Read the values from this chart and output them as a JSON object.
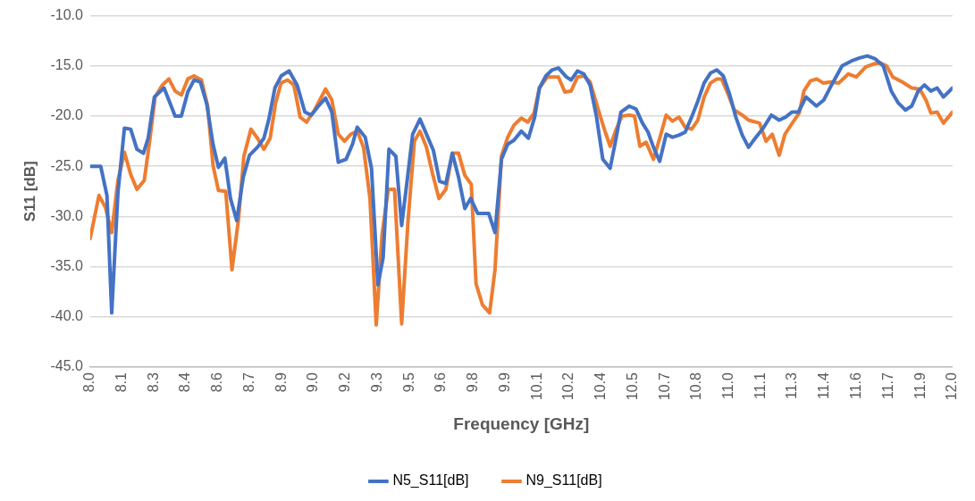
{
  "chart_data": {
    "type": "line",
    "xlabel": "Frequency [GHz]",
    "ylabel": "S11 [dB]",
    "xlim": [
      8,
      12
    ],
    "ylim": [
      -45,
      -10
    ],
    "xticks": [
      {
        "value": 8,
        "label": "8.0"
      },
      {
        "value": 8.148,
        "label": "8.1"
      },
      {
        "value": 8.296,
        "label": "8.3"
      },
      {
        "value": 8.444,
        "label": "8.4"
      },
      {
        "value": 8.593,
        "label": "8.6"
      },
      {
        "value": 8.741,
        "label": "8.7"
      },
      {
        "value": 8.889,
        "label": "8.9"
      },
      {
        "value": 9.037,
        "label": "9.0"
      },
      {
        "value": 9.185,
        "label": "9.2"
      },
      {
        "value": 9.333,
        "label": "9.3"
      },
      {
        "value": 9.481,
        "label": "9.5"
      },
      {
        "value": 9.63,
        "label": "9.6"
      },
      {
        "value": 9.778,
        "label": "9.8"
      },
      {
        "value": 9.926,
        "label": "9.9"
      },
      {
        "value": 10.074,
        "label": "10.1"
      },
      {
        "value": 10.222,
        "label": "10.2"
      },
      {
        "value": 10.37,
        "label": "10.4"
      },
      {
        "value": 10.519,
        "label": "10.5"
      },
      {
        "value": 10.667,
        "label": "10.7"
      },
      {
        "value": 10.815,
        "label": "10.8"
      },
      {
        "value": 10.963,
        "label": "11.0"
      },
      {
        "value": 11.111,
        "label": "11.1"
      },
      {
        "value": 11.259,
        "label": "11.3"
      },
      {
        "value": 11.407,
        "label": "11.4"
      },
      {
        "value": 11.556,
        "label": "11.6"
      },
      {
        "value": 11.704,
        "label": "11.7"
      },
      {
        "value": 11.852,
        "label": "11.9"
      },
      {
        "value": 12,
        "label": "12.0"
      }
    ],
    "yticks": [
      {
        "value": -45,
        "label": "-45.0"
      },
      {
        "value": -40,
        "label": "-40.0"
      },
      {
        "value": -35,
        "label": "-35.0"
      },
      {
        "value": -30,
        "label": "-30.0"
      },
      {
        "value": -25,
        "label": "-25.0"
      },
      {
        "value": -20,
        "label": "-20.0"
      },
      {
        "value": -15,
        "label": "-15.0"
      },
      {
        "value": -10,
        "label": "-10.0"
      }
    ],
    "grid": "y",
    "legend": "bottom",
    "series": [
      {
        "name": "N5_S11[dB]",
        "color": "#4472c4",
        "x": [
          8.0,
          8.049,
          8.078,
          8.1,
          8.129,
          8.159,
          8.188,
          8.217,
          8.247,
          8.269,
          8.298,
          8.343,
          8.394,
          8.423,
          8.453,
          8.482,
          8.511,
          8.541,
          8.57,
          8.595,
          8.625,
          8.651,
          8.68,
          8.71,
          8.739,
          8.776,
          8.806,
          8.828,
          8.857,
          8.886,
          8.923,
          8.96,
          8.996,
          9.026,
          9.055,
          9.092,
          9.121,
          9.151,
          9.187,
          9.217,
          9.239,
          9.276,
          9.305,
          9.335,
          9.359,
          9.386,
          9.418,
          9.445,
          9.474,
          9.496,
          9.53,
          9.562,
          9.592,
          9.621,
          9.65,
          9.68,
          9.709,
          9.738,
          9.765,
          9.798,
          9.849,
          9.878,
          9.908,
          9.937,
          9.966,
          10.0,
          10.033,
          10.062,
          10.084,
          10.114,
          10.143,
          10.172,
          10.209,
          10.231,
          10.261,
          10.29,
          10.319,
          10.349,
          10.378,
          10.412,
          10.437,
          10.462,
          10.5,
          10.532,
          10.562,
          10.588,
          10.613,
          10.642,
          10.672,
          10.701,
          10.731,
          10.76,
          10.79,
          10.819,
          10.848,
          10.878,
          10.907,
          10.937,
          10.966,
          10.995,
          11.025,
          11.054,
          11.085,
          11.122,
          11.16,
          11.196,
          11.226,
          11.255,
          11.285,
          11.321,
          11.369,
          11.403,
          11.439,
          11.488,
          11.532,
          11.569,
          11.605,
          11.642,
          11.679,
          11.716,
          11.749,
          11.782,
          11.811,
          11.841,
          11.87,
          11.9,
          11.929,
          11.958,
          12.0
        ],
        "values": [
          -25.0,
          -25.0,
          -27.9,
          -39.6,
          -27.6,
          -21.2,
          -21.3,
          -23.3,
          -23.7,
          -22.2,
          -18.1,
          -17.2,
          -20.0,
          -20.0,
          -17.6,
          -16.4,
          -16.6,
          -18.8,
          -22.8,
          -25.1,
          -24.2,
          -28.2,
          -30.4,
          -26.1,
          -23.9,
          -23.1,
          -22.2,
          -20.4,
          -17.2,
          -16.0,
          -15.5,
          -16.9,
          -19.6,
          -19.9,
          -19.1,
          -18.2,
          -19.6,
          -24.6,
          -24.3,
          -22.8,
          -21.1,
          -22.1,
          -25.2,
          -36.8,
          -34.1,
          -23.3,
          -24.0,
          -30.9,
          -25.8,
          -21.8,
          -20.3,
          -21.9,
          -23.4,
          -26.5,
          -26.7,
          -23.7,
          -26.1,
          -29.2,
          -28.2,
          -29.7,
          -29.7,
          -31.6,
          -24.3,
          -22.8,
          -22.4,
          -21.5,
          -22.2,
          -20.1,
          -17.2,
          -16.0,
          -15.4,
          -15.2,
          -16.1,
          -16.4,
          -15.5,
          -15.8,
          -16.9,
          -20.1,
          -24.3,
          -25.2,
          -22.5,
          -19.6,
          -19.0,
          -19.3,
          -20.7,
          -21.6,
          -23.1,
          -24.5,
          -21.8,
          -22.1,
          -21.9,
          -21.6,
          -20.1,
          -18.5,
          -16.7,
          -15.7,
          -15.4,
          -16.0,
          -17.8,
          -20.1,
          -21.9,
          -23.1,
          -22.2,
          -21.2,
          -19.9,
          -20.4,
          -20.1,
          -19.6,
          -19.6,
          -18.1,
          -19.0,
          -18.4,
          -16.9,
          -15.0,
          -14.5,
          -14.2,
          -14.0,
          -14.3,
          -15.0,
          -17.5,
          -18.7,
          -19.4,
          -19.0,
          -17.5,
          -16.9,
          -17.5,
          -17.2,
          -18.1,
          -17.2
        ]
      },
      {
        "name": "N9_S11[dB]",
        "color": "#ed7d31",
        "x": [
          8.0,
          8.041,
          8.071,
          8.1,
          8.129,
          8.159,
          8.188,
          8.217,
          8.251,
          8.276,
          8.301,
          8.335,
          8.365,
          8.394,
          8.423,
          8.453,
          8.482,
          8.516,
          8.545,
          8.57,
          8.595,
          8.629,
          8.658,
          8.688,
          8.713,
          8.746,
          8.776,
          8.806,
          8.835,
          8.86,
          8.886,
          8.916,
          8.945,
          8.974,
          9.004,
          9.041,
          9.092,
          9.121,
          9.151,
          9.18,
          9.209,
          9.239,
          9.268,
          9.298,
          9.327,
          9.354,
          9.383,
          9.412,
          9.445,
          9.474,
          9.504,
          9.53,
          9.56,
          9.589,
          9.618,
          9.65,
          9.68,
          9.709,
          9.738,
          9.768,
          9.79,
          9.82,
          9.853,
          9.878,
          9.908,
          9.937,
          9.966,
          10.0,
          10.03,
          10.059,
          10.084,
          10.121,
          10.172,
          10.202,
          10.231,
          10.261,
          10.29,
          10.319,
          10.356,
          10.385,
          10.412,
          10.437,
          10.466,
          10.5,
          10.525,
          10.55,
          10.579,
          10.613,
          10.642,
          10.672,
          10.701,
          10.731,
          10.76,
          10.79,
          10.819,
          10.848,
          10.878,
          10.907,
          10.929,
          10.959,
          10.988,
          11.025,
          11.054,
          11.105,
          11.135,
          11.164,
          11.196,
          11.223,
          11.26,
          11.289,
          11.311,
          11.341,
          11.37,
          11.4,
          11.436,
          11.473,
          11.517,
          11.554,
          11.598,
          11.635,
          11.664,
          11.694,
          11.723,
          11.767,
          11.811,
          11.848,
          11.877,
          11.9,
          11.929,
          11.958,
          12.0
        ],
        "values": [
          -32.2,
          -27.9,
          -29.1,
          -31.6,
          -26.4,
          -23.6,
          -25.8,
          -27.3,
          -26.4,
          -22.5,
          -18.1,
          -16.9,
          -16.3,
          -17.5,
          -17.9,
          -16.3,
          -16.0,
          -16.4,
          -19.0,
          -24.9,
          -27.4,
          -27.5,
          -35.3,
          -30.3,
          -24.0,
          -21.3,
          -22.2,
          -23.3,
          -22.2,
          -18.7,
          -16.7,
          -16.4,
          -16.9,
          -20.1,
          -20.6,
          -19.4,
          -17.3,
          -18.4,
          -21.8,
          -22.5,
          -21.8,
          -21.5,
          -23.1,
          -28.2,
          -40.8,
          -31.8,
          -27.3,
          -27.3,
          -40.7,
          -30.6,
          -22.5,
          -21.5,
          -23.1,
          -25.8,
          -28.2,
          -27.3,
          -23.7,
          -23.7,
          -25.9,
          -26.8,
          -36.7,
          -38.8,
          -39.6,
          -35.3,
          -24.0,
          -22.1,
          -20.9,
          -20.2,
          -20.6,
          -19.7,
          -17.2,
          -16.1,
          -16.1,
          -17.6,
          -17.5,
          -16.1,
          -16.0,
          -16.6,
          -19.3,
          -21.3,
          -23.0,
          -21.5,
          -20.0,
          -19.9,
          -20.0,
          -23.0,
          -22.6,
          -24.3,
          -22.2,
          -19.9,
          -20.5,
          -20.1,
          -21.1,
          -21.3,
          -20.4,
          -18.1,
          -16.7,
          -16.3,
          -16.3,
          -17.8,
          -19.4,
          -19.9,
          -20.4,
          -20.7,
          -22.5,
          -21.8,
          -23.9,
          -21.8,
          -20.6,
          -19.7,
          -17.5,
          -16.5,
          -16.3,
          -16.7,
          -16.6,
          -16.7,
          -15.8,
          -16.1,
          -15.1,
          -14.8,
          -14.7,
          -15.0,
          -16.1,
          -16.6,
          -17.2,
          -17.3,
          -18.4,
          -19.7,
          -19.6,
          -20.7,
          -19.6
        ]
      }
    ]
  }
}
